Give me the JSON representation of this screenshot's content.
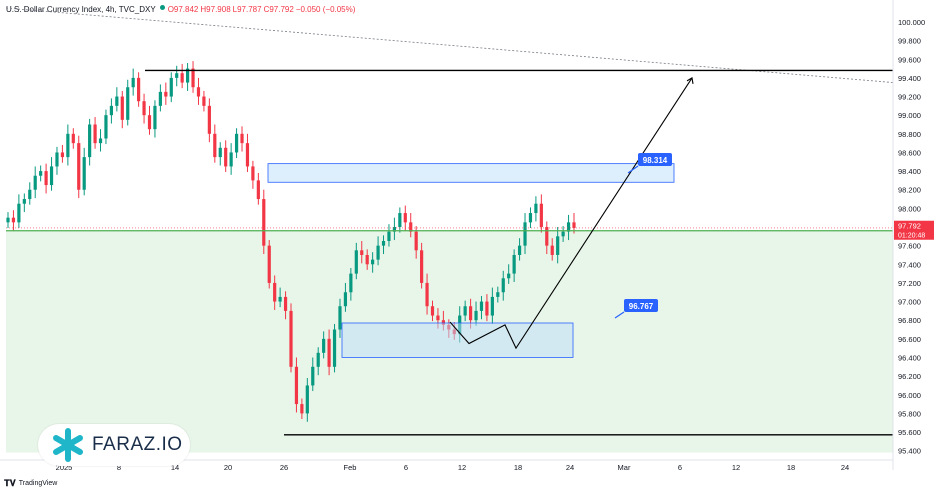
{
  "legend": {
    "symbol": "U.S. Dollar Currency Index, 4h, TVC_DXY",
    "open": "O97.842",
    "high": "H97.908",
    "low": "L97.787",
    "close": "C97.792",
    "change": "−0.050 (−0.05%)"
  },
  "footer": {
    "brand": "TradingView",
    "icon": "tradingview-logo-icon"
  },
  "logo": {
    "text": "FARAZ.IO",
    "icon": "faraz-logo-icon"
  },
  "price_tag": {
    "price": "97.792",
    "countdown": "01:20:48",
    "color": "#f23645"
  },
  "colors": {
    "up_candle": "#089981",
    "down_candle": "#f23645",
    "support_line": "#4caf50",
    "support_zone": "#e8f5e9",
    "box_fill": "#bbdefb",
    "box_border": "#2962ff",
    "label_bg": "#2962ff"
  },
  "chart_data": {
    "type": "candlestick",
    "y_axis": {
      "range": [
        95.3,
        100.15
      ],
      "tick_labels": [
        "100.000",
        "99.800",
        "99.600",
        "99.400",
        "99.200",
        "99.000",
        "98.800",
        "98.600",
        "98.400",
        "98.200",
        "98.000",
        "97.800",
        "97.600",
        "97.400",
        "97.200",
        "97.000",
        "96.800",
        "96.600",
        "96.400",
        "96.200",
        "96.000",
        "95.800",
        "95.600",
        "95.400"
      ]
    },
    "x_axis": {
      "tick_labels": [
        "2025",
        "8",
        "14",
        "20",
        "26",
        "Feb",
        "6",
        "12",
        "18",
        "24",
        "Mar",
        "6",
        "12",
        "18",
        "24"
      ]
    },
    "grid": false,
    "close_path": [
      97.9,
      97.85,
      98.05,
      98.1,
      98.2,
      98.35,
      98.4,
      98.25,
      98.45,
      98.6,
      98.55,
      98.8,
      98.7,
      98.2,
      98.55,
      98.9,
      98.7,
      98.75,
      99.0,
      99.1,
      99.2,
      98.95,
      99.3,
      99.4,
      99.15,
      99.0,
      98.85,
      99.1,
      99.25,
      99.2,
      99.4,
      99.45,
      99.35,
      99.5,
      99.3,
      99.2,
      99.1,
      98.8,
      98.55,
      98.65,
      98.45,
      98.6,
      98.8,
      98.7,
      98.45,
      98.3,
      98.1,
      97.6,
      97.2,
      97.0,
      97.05,
      96.9,
      96.3,
      95.9,
      95.8,
      96.1,
      96.3,
      96.45,
      96.6,
      96.3,
      96.7,
      96.95,
      97.1,
      97.3,
      97.55,
      97.5,
      97.4,
      97.45,
      97.6,
      97.65,
      97.75,
      97.8,
      97.95,
      97.85,
      97.75,
      97.55,
      97.2,
      96.95,
      96.85,
      96.8,
      96.75,
      96.7,
      96.65,
      96.85,
      96.95,
      96.8,
      96.9,
      97.0,
      96.85,
      97.05,
      97.1,
      97.25,
      97.3,
      97.5,
      97.6,
      97.85,
      97.95,
      98.05,
      97.8,
      97.6,
      97.5,
      97.7,
      97.75,
      97.85,
      97.79
    ],
    "annotations": {
      "resistance_line": 99.48,
      "support_line": 97.76,
      "low_line": 95.57,
      "box_upper": {
        "top": 98.48,
        "bottom": 98.28,
        "label": "98.314"
      },
      "box_lower": {
        "top": 96.77,
        "bottom": 96.4,
        "label": "96.767"
      },
      "dotted_trend": [
        100.15,
        99.35
      ],
      "projection_points": [
        {
          "x": "12",
          "y": 96.55
        },
        {
          "x": "15",
          "y": 96.75
        },
        {
          "x": "17",
          "y": 96.5
        },
        {
          "x": "Mar 6",
          "y": 99.4
        }
      ]
    }
  }
}
